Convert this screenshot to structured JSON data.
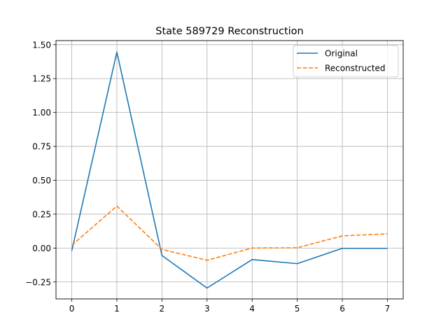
{
  "chart_data": {
    "type": "line",
    "title": "State 589729 Reconstruction",
    "xlabel": "",
    "ylabel": "",
    "x": [
      0,
      1,
      2,
      3,
      4,
      5,
      6,
      7
    ],
    "xlim": [
      -0.35,
      7.35
    ],
    "ylim": [
      -0.375,
      1.53
    ],
    "x_ticks": [
      0,
      1,
      2,
      3,
      4,
      5,
      6,
      7
    ],
    "y_ticks": [
      -0.25,
      0.0,
      0.25,
      0.5,
      0.75,
      1.0,
      1.25,
      1.5
    ],
    "y_tick_labels": [
      "−0.25",
      "0.00",
      "0.25",
      "0.50",
      "0.75",
      "1.00",
      "1.25",
      "1.50"
    ],
    "grid": true,
    "legend_position": "top-right",
    "series": [
      {
        "name": "Original",
        "values": [
          -0.02,
          1.445,
          -0.055,
          -0.295,
          -0.085,
          -0.115,
          -0.002,
          -0.002
        ],
        "color": "#1f77b4",
        "dash": "solid"
      },
      {
        "name": "Reconstructed",
        "values": [
          0.02,
          0.31,
          -0.01,
          -0.09,
          0.0,
          0.002,
          0.09,
          0.105
        ],
        "color": "#ff7f0e",
        "dash": "dashed"
      }
    ]
  }
}
